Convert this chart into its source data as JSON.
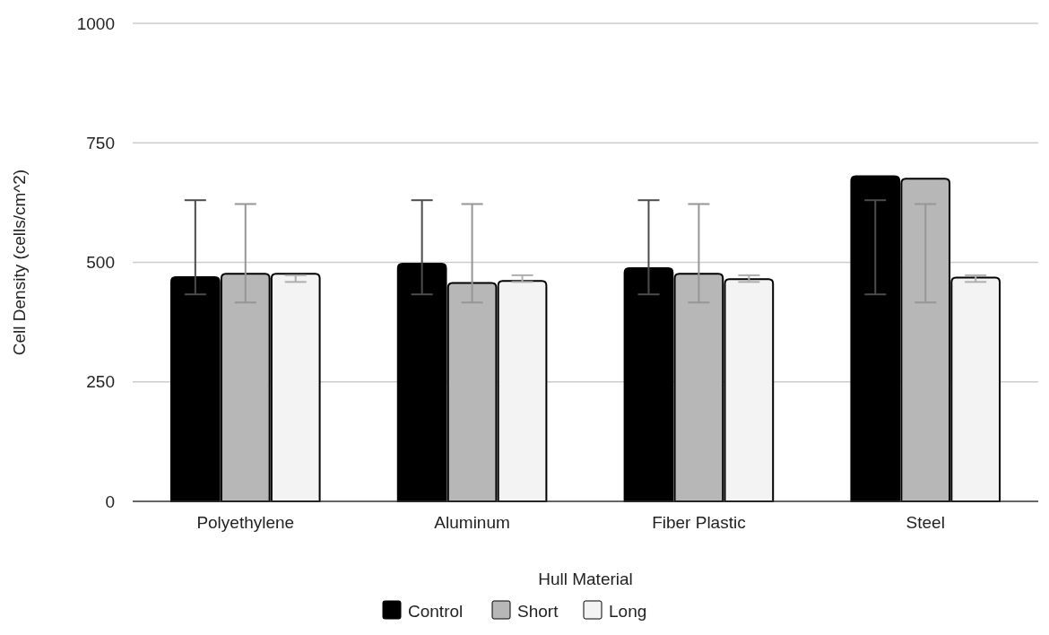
{
  "chart_data": {
    "type": "bar",
    "xlabel": "Hull Material",
    "ylabel": "Cell Density (cells/cm^2)",
    "categories": [
      "Polyethylene",
      "Aluminum",
      "Fiber Plastic",
      "Steel"
    ],
    "series": [
      {
        "name": "Control",
        "color": "#000000",
        "values": [
          469,
          497,
          488,
          680
        ],
        "errors": [
          [
            433,
            630
          ],
          [
            433,
            630
          ],
          [
            433,
            630
          ],
          [
            433,
            630
          ]
        ]
      },
      {
        "name": "Short",
        "color": "#b7b7b7",
        "values": [
          476,
          457,
          476,
          675
        ],
        "errors": [
          [
            416,
            622
          ],
          [
            416,
            622
          ],
          [
            416,
            622
          ],
          [
            416,
            622
          ]
        ]
      },
      {
        "name": "Long",
        "color": "#f3f3f3",
        "values": [
          476,
          461,
          465,
          468
        ],
        "errors": [
          [
            459,
            473
          ],
          [
            459,
            473
          ],
          [
            459,
            473
          ],
          [
            459,
            473
          ]
        ]
      }
    ],
    "ylim": [
      0,
      1000
    ],
    "yticks": [
      0,
      250,
      500,
      750,
      1000
    ],
    "grid": "y",
    "legend": "bottom"
  }
}
